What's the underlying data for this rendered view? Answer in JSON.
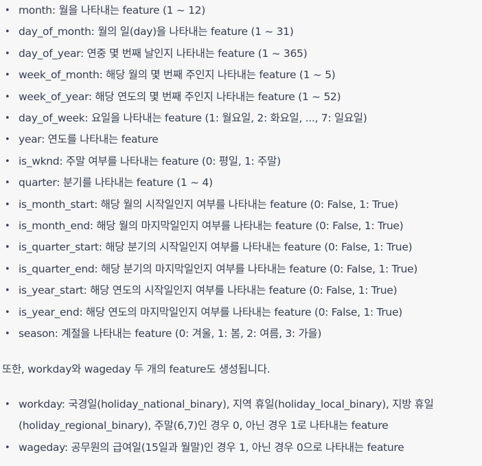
{
  "list1": [
    {
      "term": "month",
      "desc": ": 월을 나타내는 feature (1 ~ 12)"
    },
    {
      "term": "day_of_month",
      "desc": ": 월의 일(day)을 나타내는 feature (1 ~ 31)"
    },
    {
      "term": "day_of_year",
      "desc": ": 연중 몇 번째 날인지 나타내는 feature (1 ~ 365)"
    },
    {
      "term": "week_of_month",
      "desc": ": 해당 월의 몇 번째 주인지 나타내는 feature (1 ~ 5)"
    },
    {
      "term": "week_of_year",
      "desc": ": 해당 연도의 몇 번째 주인지 나타내는 feature (1 ~ 52)"
    },
    {
      "term": "day_of_week",
      "desc": ": 요일을 나타내는 feature (1: 월요일, 2: 화요일, ..., 7: 일요일)"
    },
    {
      "term": "year",
      "desc": ": 연도를 나타내는 feature"
    },
    {
      "term": "is_wknd",
      "desc": ": 주말 여부를 나타내는 feature (0: 평일, 1: 주말)"
    },
    {
      "term": "quarter",
      "desc": ": 분기를 나타내는 feature (1 ~ 4)"
    },
    {
      "term": "is_month_start",
      "desc": ": 해당 월의 시작일인지 여부를 나타내는 feature (0: False, 1: True)"
    },
    {
      "term": "is_month_end",
      "desc": ": 해당 월의 마지막일인지 여부를 나타내는 feature (0: False, 1: True)"
    },
    {
      "term": "is_quarter_start",
      "desc": ": 해당 분기의 시작일인지 여부를 나타내는 feature (0: False, 1: True)"
    },
    {
      "term": "is_quarter_end",
      "desc": ": 해당 분기의 마지막일인지 여부를 나타내는 feature (0: False, 1: True)"
    },
    {
      "term": "is_year_start",
      "desc": ": 해당 연도의 시작일인지 여부를 나타내는 feature (0: False, 1: True)"
    },
    {
      "term": "is_year_end",
      "desc": ": 해당 연도의 마지막일인지 여부를 나타내는 feature (0: False, 1: True)"
    },
    {
      "term": "season",
      "desc": ": 계절을 나타내는 feature (0: 겨울, 1: 봄, 2: 여름, 3: 가을)"
    }
  ],
  "paragraph": "또한, workday와 wageday 두 개의 feature도 생성됩니다.",
  "list2": [
    {
      "term": "workday",
      "desc": ": 국경일(holiday_national_binary), 지역 휴일(holiday_local_binary), 지방 휴일(holiday_regional_binary), 주말(6,7)인 경우 0, 아닌 경우 1로 나타내는 feature"
    },
    {
      "term": "wageday",
      "desc": ": 공무원의 급여일(15일과 월말)인 경우 1, 아닌 경우 0으로 나타내는 feature"
    }
  ],
  "bullet_char": "•"
}
